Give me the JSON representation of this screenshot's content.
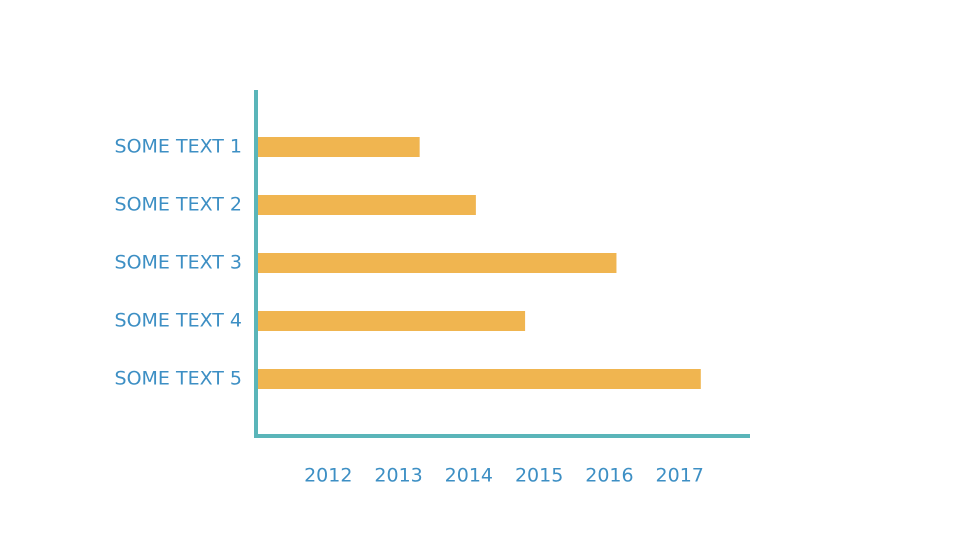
{
  "chart_data": {
    "type": "hbar",
    "categories": [
      "SOME TEXT 1",
      "SOME TEXT 2",
      "SOME TEXT 3",
      "SOME TEXT 4",
      "SOME TEXT 5"
    ],
    "values": [
      2013.3,
      2014.1,
      2016.1,
      2014.8,
      2017.3
    ],
    "color": "#f0b550",
    "axis_color": "#5ab5b9",
    "xlim": [
      2011,
      2018
    ],
    "xticks": [
      2012,
      2013,
      2014,
      2015,
      2016,
      2017
    ]
  }
}
